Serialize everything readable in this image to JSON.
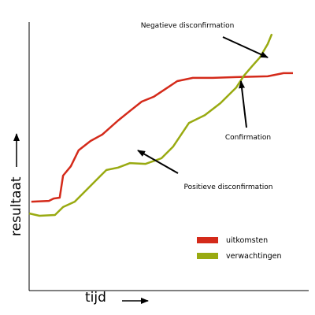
{
  "chart_data": {
    "type": "line",
    "xlabel": "tijd",
    "ylabel": "resultaat",
    "xlim": [
      0,
      100
    ],
    "ylim": [
      0,
      100
    ],
    "annotations": [
      "Negatieve disconfirmation",
      "Confirmation",
      "Positieve disconfirmation"
    ],
    "series": [
      {
        "name": "uitkomsten",
        "color": "#d42a1a",
        "x": [
          0.8,
          7.1,
          8.8,
          11.0,
          12.2,
          15.0,
          17.8,
          22.1,
          26.3,
          32.0,
          36.3,
          40.5,
          44.8,
          49.0,
          53.3,
          58.9,
          66.0,
          74.5,
          85.8,
          91.5,
          94.9
        ],
        "values": [
          33.4,
          33.7,
          34.6,
          34.9,
          43.2,
          46.7,
          52.7,
          56.2,
          58.6,
          63.9,
          67.5,
          71.0,
          72.8,
          75.7,
          78.7,
          79.9,
          79.9,
          80.2,
          80.5,
          81.7,
          81.7
        ]
      },
      {
        "name": "verwachtingen",
        "color": "#99aa11",
        "x": [
          0,
          3.7,
          9.3,
          12.2,
          16.4,
          20.7,
          24.9,
          27.8,
          32.0,
          36.3,
          41.9,
          47.6,
          51.8,
          57.5,
          63.2,
          68.8,
          74.5,
          77.3,
          80.2,
          83.0,
          85.8,
          87.3
        ],
        "values": [
          29.0,
          28.1,
          28.4,
          31.4,
          33.4,
          37.9,
          42.3,
          45.3,
          46.2,
          47.9,
          47.6,
          49.7,
          54.1,
          63.0,
          65.9,
          70.4,
          76.3,
          80.8,
          84.3,
          87.6,
          92.6,
          96.4
        ]
      }
    ]
  }
}
